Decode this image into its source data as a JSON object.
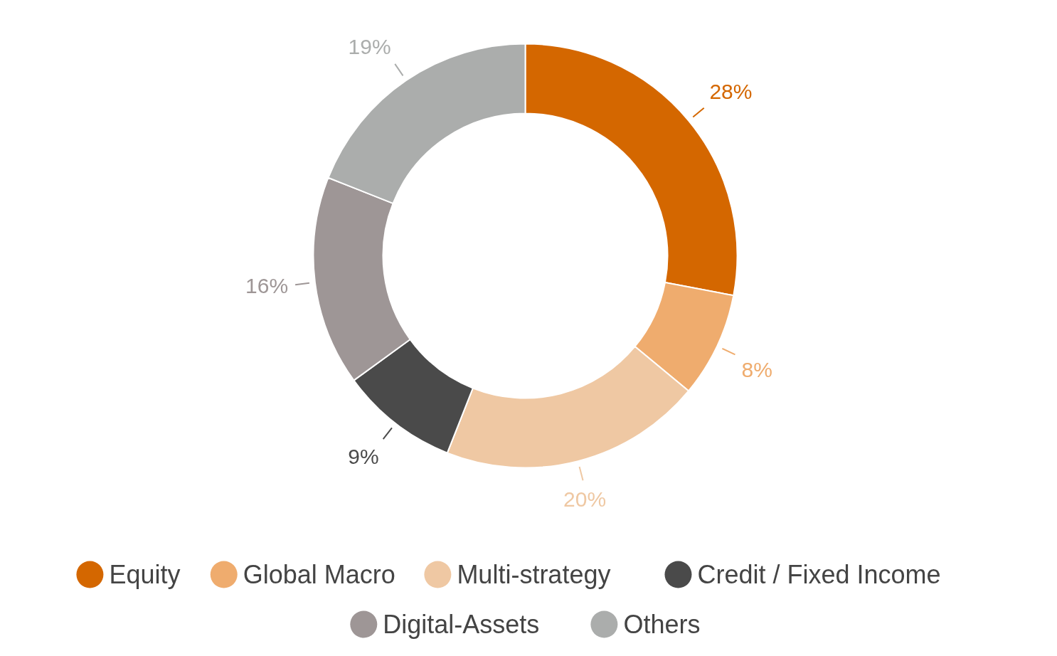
{
  "chart_data": {
    "type": "donut",
    "categories": [
      "Equity",
      "Global Macro",
      "Multi-strategy",
      "Credit / Fixed Income",
      "Digital-Assets",
      "Others"
    ],
    "values": [
      28,
      8,
      20,
      9,
      16,
      19
    ],
    "colors": [
      "#d46700",
      "#efac6e",
      "#efc8a3",
      "#4a4a4a",
      "#9e9696",
      "#abadac"
    ],
    "value_labels": [
      "28%",
      "8%",
      "20%",
      "9%",
      "16%",
      "19%"
    ],
    "legend": "bottom"
  }
}
